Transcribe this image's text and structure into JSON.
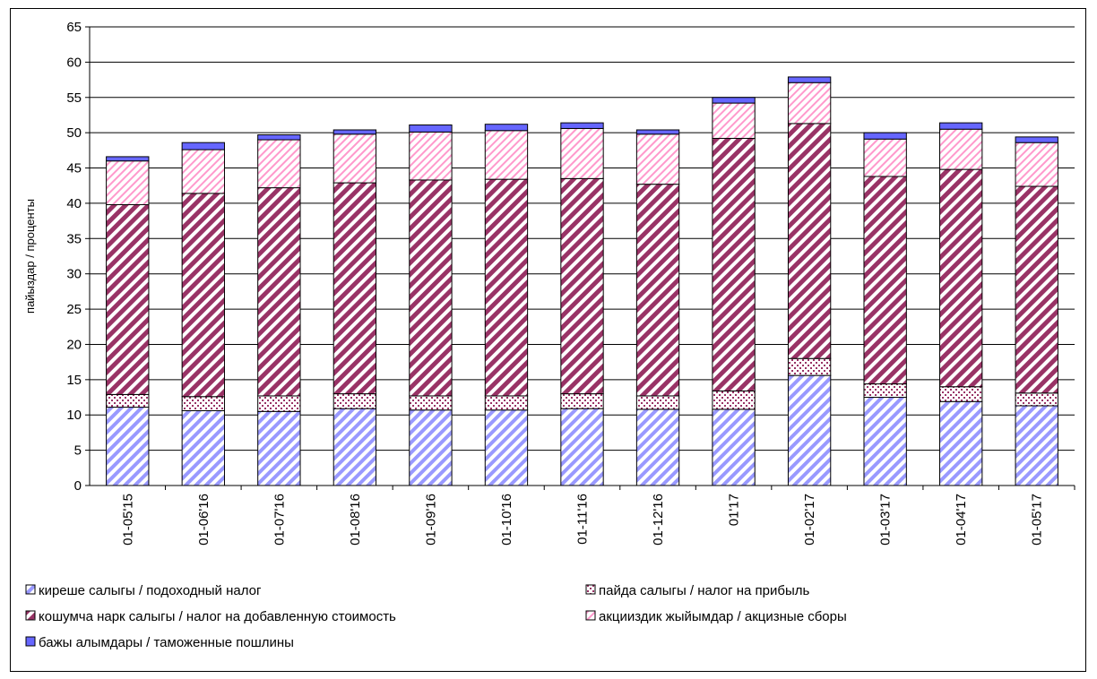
{
  "chart_data": {
    "type": "bar",
    "stacked": true,
    "ylabel": "пайыздар / проценты",
    "xlabel": "",
    "ylim": [
      0,
      65
    ],
    "ytick_step": 5,
    "grid": true,
    "legend_position": "bottom",
    "categories": [
      "01-05'15",
      "01-06'16",
      "01-07'16",
      "01-08'16",
      "01-09'16",
      "01-10'16",
      "01-11'16",
      "01-12'16",
      "01'17",
      "01-02'17",
      "01-03'17",
      "01-04'17",
      "01-05'17"
    ],
    "series": [
      {
        "name": "киреше салыгы / подоходный налог",
        "pattern": "diagonal-light",
        "color": "#9999ff",
        "values": [
          11.1,
          10.6,
          10.5,
          10.9,
          10.7,
          10.7,
          10.9,
          10.8,
          10.8,
          15.6,
          12.5,
          11.9,
          11.3
        ]
      },
      {
        "name": "пайда салыгы / налог на прибыль",
        "pattern": "dots",
        "color": "#993366",
        "values": [
          1.8,
          2.0,
          2.2,
          2.1,
          2.0,
          2.0,
          2.1,
          1.9,
          2.6,
          2.4,
          1.9,
          2.1,
          1.8
        ]
      },
      {
        "name": "кошумча нарк салыгы / налог на добавленную стоимость",
        "pattern": "diagonal-dark",
        "color": "#993366",
        "values": [
          26.9,
          28.8,
          29.5,
          29.9,
          30.6,
          30.7,
          30.5,
          30.0,
          35.8,
          33.3,
          29.4,
          30.8,
          29.3
        ]
      },
      {
        "name": "акцииздик жыйымдар / акцизные сборы",
        "pattern": "diagonal-pink",
        "color": "#ff99cc",
        "values": [
          6.2,
          6.2,
          6.8,
          6.9,
          6.8,
          6.9,
          7.1,
          7.1,
          5.0,
          5.8,
          5.3,
          5.7,
          6.2
        ]
      },
      {
        "name": "бажы алымдары / таможенные пошлины",
        "pattern": "solid",
        "color": "#6666ff",
        "values": [
          0.6,
          1.0,
          0.7,
          0.6,
          1.0,
          0.9,
          0.8,
          0.6,
          0.8,
          0.8,
          0.9,
          0.9,
          0.8
        ]
      }
    ]
  }
}
